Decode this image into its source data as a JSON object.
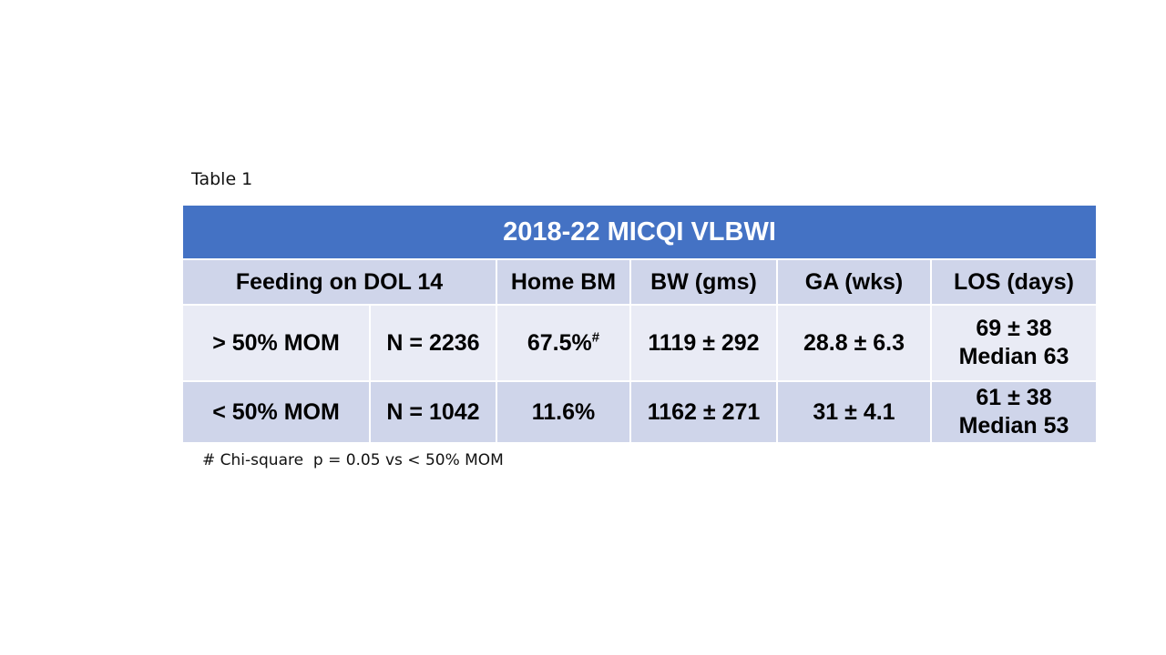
{
  "caption": "Table 1",
  "table": {
    "title": "2018-22 MICQI VLBWI",
    "headers": {
      "feeding": "Feeding on DOL 14",
      "home_bm": "Home BM",
      "bw": "BW (gms)",
      "ga": "GA (wks)",
      "los": "LOS (days)"
    },
    "rows": [
      {
        "group": "> 50% MOM",
        "n": "N = 2236",
        "home_bm": "67.5%",
        "home_bm_mark": "#",
        "bw": "1119 ± 292",
        "ga": "28.8 ± 6.3",
        "los_mean": "69 ± 38",
        "los_median": "Median 63"
      },
      {
        "group": "< 50% MOM",
        "n": "N = 1042",
        "home_bm": "11.6%",
        "bw": "1162 ± 271",
        "ga": "31 ± 4.1",
        "los_mean": "61 ± 38",
        "los_median": "Median 53"
      }
    ]
  },
  "footnote": "# Chi-square  p = 0.05 vs < 50% MOM",
  "colors": {
    "title_bar": "#4472c4",
    "header_fill": "#cfd5ea",
    "row_light": "#e9ebf5",
    "row_dark": "#cfd5ea"
  }
}
